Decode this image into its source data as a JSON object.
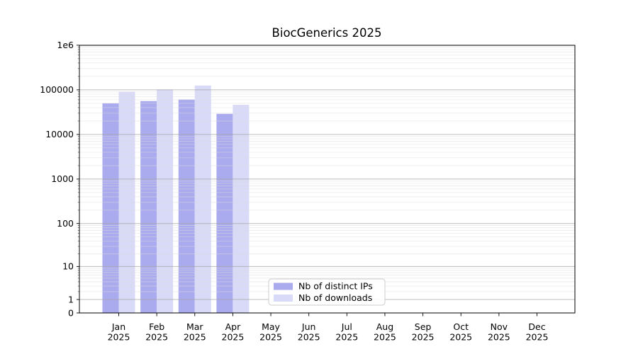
{
  "title": "BiocGenerics 2025",
  "x_axis": {
    "months": [
      "Jan",
      "Feb",
      "Mar",
      "Apr",
      "May",
      "Jun",
      "Jul",
      "Aug",
      "Sep",
      "Oct",
      "Nov",
      "Dec"
    ],
    "year": "2025"
  },
  "y_axis": {
    "tick_labels": [
      "0",
      "1",
      "10",
      "100",
      "1000",
      "10000",
      "100000",
      "1e6"
    ],
    "tick_values": [
      0,
      1,
      10,
      100,
      1000,
      10000,
      100000,
      1000000
    ]
  },
  "chart_data": {
    "type": "bar",
    "title": "BiocGenerics 2025",
    "categories": [
      "Jan 2025",
      "Feb 2025",
      "Mar 2025",
      "Apr 2025",
      "May 2025",
      "Jun 2025",
      "Jul 2025",
      "Aug 2025",
      "Sep 2025",
      "Oct 2025",
      "Nov 2025",
      "Dec 2025"
    ],
    "series": [
      {
        "name": "Nb of distinct IPs",
        "color": "#aaaaee",
        "values": [
          50000,
          56000,
          61000,
          29000,
          null,
          null,
          null,
          null,
          null,
          null,
          null,
          null
        ]
      },
      {
        "name": "Nb of downloads",
        "color": "#d9d9f8",
        "values": [
          91000,
          102000,
          125000,
          46000,
          null,
          null,
          null,
          null,
          null,
          null,
          null,
          null
        ]
      }
    ],
    "yscale": "log1p",
    "ylim": [
      0,
      1000000
    ],
    "grid": {
      "major": true,
      "minor": true,
      "orientation": "horizontal"
    },
    "legend_position": "lower center inside"
  }
}
